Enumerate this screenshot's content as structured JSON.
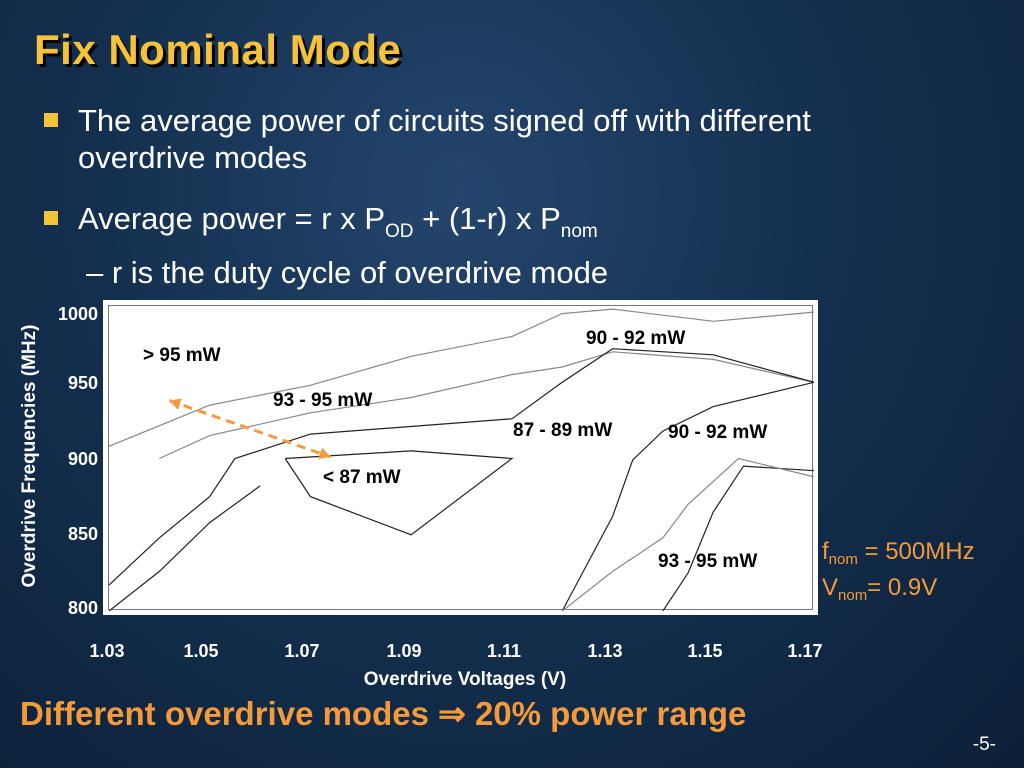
{
  "slide": {
    "title": "Fix Nominal Mode",
    "bullet1": "The average power of circuits signed off with different overdrive modes",
    "bullet2_main": "Average power = r x P",
    "bullet2_sub1": "OD",
    "bullet2_mid": " + (1-r) x P",
    "bullet2_sub2": "nom",
    "subbullet": "– r is the duty cycle of overdrive mode",
    "f_nom_base": "f",
    "f_nom_sub": "nom",
    "f_nom_val": " = 500MHz",
    "v_nom_base": "V",
    "v_nom_sub": "nom",
    "v_nom_val": "= 0.9V",
    "conclusion": "Different overdrive modes ⇒ 20% power range",
    "page_number": "-5-"
  },
  "chart_data": {
    "type": "contour",
    "xlabel": "Overdrive Voltages (V)",
    "ylabel": "Overdrive Frequencies (MHz)",
    "xticks": [
      "1.03",
      "1.05",
      "1.07",
      "1.09",
      "1.11",
      "1.13",
      "1.15",
      "1.17"
    ],
    "yticks": [
      "1000",
      "950",
      "900",
      "850",
      "800"
    ],
    "xlim": [
      1.03,
      1.17
    ],
    "ylim": [
      800,
      1000
    ],
    "region_labels": [
      "> 95 mW",
      "93 - 95 mW",
      "90 - 92 mW",
      "87 - 89 mW",
      "90 - 92 mW",
      "< 87 mW",
      "93 - 95 mW"
    ],
    "contours": [
      {
        "name": "c1",
        "points": [
          [
            1.03,
            908
          ],
          [
            1.05,
            935
          ],
          [
            1.07,
            948
          ],
          [
            1.09,
            967
          ],
          [
            1.11,
            980
          ],
          [
            1.12,
            995
          ],
          [
            1.13,
            998
          ],
          [
            1.15,
            990
          ],
          [
            1.17,
            996
          ]
        ]
      },
      {
        "name": "c2",
        "points": [
          [
            1.04,
            900
          ],
          [
            1.05,
            915
          ],
          [
            1.07,
            930
          ],
          [
            1.09,
            940
          ],
          [
            1.11,
            955
          ],
          [
            1.12,
            960
          ],
          [
            1.13,
            970
          ],
          [
            1.15,
            965
          ],
          [
            1.17,
            950
          ]
        ]
      },
      {
        "name": "c3",
        "points": [
          [
            1.03,
            817
          ],
          [
            1.04,
            848
          ],
          [
            1.05,
            875
          ],
          [
            1.055,
            900
          ],
          [
            1.07,
            916
          ],
          [
            1.11,
            926
          ],
          [
            1.12,
            950
          ],
          [
            1.13,
            972
          ],
          [
            1.15,
            968
          ],
          [
            1.17,
            950
          ]
        ]
      },
      {
        "name": "c4",
        "points": [
          [
            1.03,
            800
          ],
          [
            1.04,
            826
          ],
          [
            1.05,
            858
          ],
          [
            1.06,
            882
          ]
        ]
      },
      {
        "name": "c5",
        "points": [
          [
            1.12,
            800
          ],
          [
            1.13,
            862
          ],
          [
            1.134,
            899
          ],
          [
            1.14,
            918
          ],
          [
            1.15,
            934
          ],
          [
            1.17,
            950
          ]
        ]
      },
      {
        "name": "c6",
        "points": [
          [
            1.14,
            800
          ],
          [
            1.145,
            825
          ],
          [
            1.15,
            865
          ],
          [
            1.156,
            895
          ],
          [
            1.17,
            892
          ]
        ]
      },
      {
        "name": "c7",
        "points": [
          [
            1.12,
            800
          ],
          [
            1.13,
            826
          ],
          [
            1.14,
            848
          ],
          [
            1.145,
            870
          ],
          [
            1.155,
            900
          ],
          [
            1.17,
            888
          ]
        ]
      },
      {
        "name": "c8",
        "points": [
          [
            1.065,
            900
          ],
          [
            1.09,
            905
          ],
          [
            1.11,
            900
          ],
          [
            1.09,
            850
          ],
          [
            1.07,
            875
          ],
          [
            1.065,
            900
          ]
        ]
      }
    ],
    "arrow": {
      "from": [
        1.042,
        938
      ],
      "to": [
        1.074,
        901
      ],
      "color": "#f59a3a"
    }
  }
}
